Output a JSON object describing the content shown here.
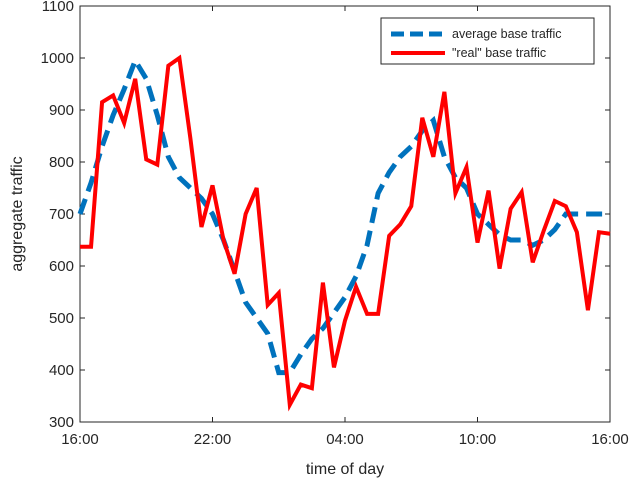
{
  "chart_data": {
    "type": "line",
    "xlabel": "time of day",
    "ylabel": "aggregate traffic",
    "xlim": [
      0,
      24
    ],
    "ylim": [
      300,
      1100
    ],
    "x_ticks": [
      {
        "value": 0,
        "label": "16:00"
      },
      {
        "value": 6,
        "label": "22:00"
      },
      {
        "value": 12,
        "label": "04:00"
      },
      {
        "value": 18,
        "label": "10:00"
      },
      {
        "value": 24,
        "label": "16:00"
      }
    ],
    "y_ticks": [
      300,
      400,
      500,
      600,
      700,
      800,
      900,
      1000,
      1100
    ],
    "grid": false,
    "legend_position": "top-right",
    "series": [
      {
        "name": "average base traffic",
        "color": "#0072BD",
        "style": "dashed",
        "x": [
          0,
          0.5,
          1,
          1.5,
          2,
          2.5,
          3,
          3.5,
          4,
          4.5,
          5,
          5.5,
          6,
          6.5,
          7,
          7.5,
          8,
          8.5,
          9,
          9.5,
          10,
          10.5,
          11,
          11.5,
          12,
          12.5,
          13,
          13.5,
          14,
          14.5,
          15,
          15.5,
          16,
          16.5,
          17,
          17.5,
          18,
          18.5,
          19,
          19.5,
          20,
          20.5,
          21,
          21.5,
          22,
          22.5,
          23,
          23.5,
          24
        ],
        "y": [
          700,
          760,
          830,
          890,
          940,
          995,
          960,
          890,
          810,
          770,
          750,
          730,
          700,
          650,
          590,
          530,
          500,
          470,
          395,
          395,
          430,
          460,
          480,
          510,
          540,
          580,
          640,
          740,
          780,
          810,
          830,
          860,
          880,
          810,
          770,
          750,
          700,
          680,
          660,
          650,
          650,
          640,
          650,
          670,
          700,
          700,
          700,
          700,
          700
        ]
      },
      {
        "name": "\"real\" base traffic",
        "color": "#FF0000",
        "style": "solid",
        "x": [
          0,
          0.5,
          1,
          1.5,
          2,
          2.5,
          3,
          3.5,
          4,
          4.5,
          5,
          5.5,
          6,
          6.5,
          7,
          7.5,
          8,
          8.5,
          9,
          9.5,
          10,
          10.5,
          11,
          11.5,
          12,
          12.5,
          13,
          13.5,
          14,
          14.5,
          15,
          15.5,
          16,
          16.5,
          17,
          17.5,
          18,
          18.5,
          19,
          19.5,
          20,
          20.5,
          21,
          21.5,
          22,
          22.5,
          23,
          23.5,
          24
        ],
        "y": [
          637,
          637,
          915,
          928,
          875,
          960,
          805,
          795,
          985,
          1000,
          845,
          675,
          755,
          650,
          585,
          700,
          750,
          525,
          548,
          333,
          372,
          365,
          568,
          405,
          495,
          560,
          508,
          508,
          658,
          680,
          715,
          885,
          810,
          935,
          740,
          790,
          645,
          745,
          595,
          710,
          742,
          607,
          668,
          725,
          715,
          665,
          515,
          665,
          662
        ]
      }
    ]
  }
}
